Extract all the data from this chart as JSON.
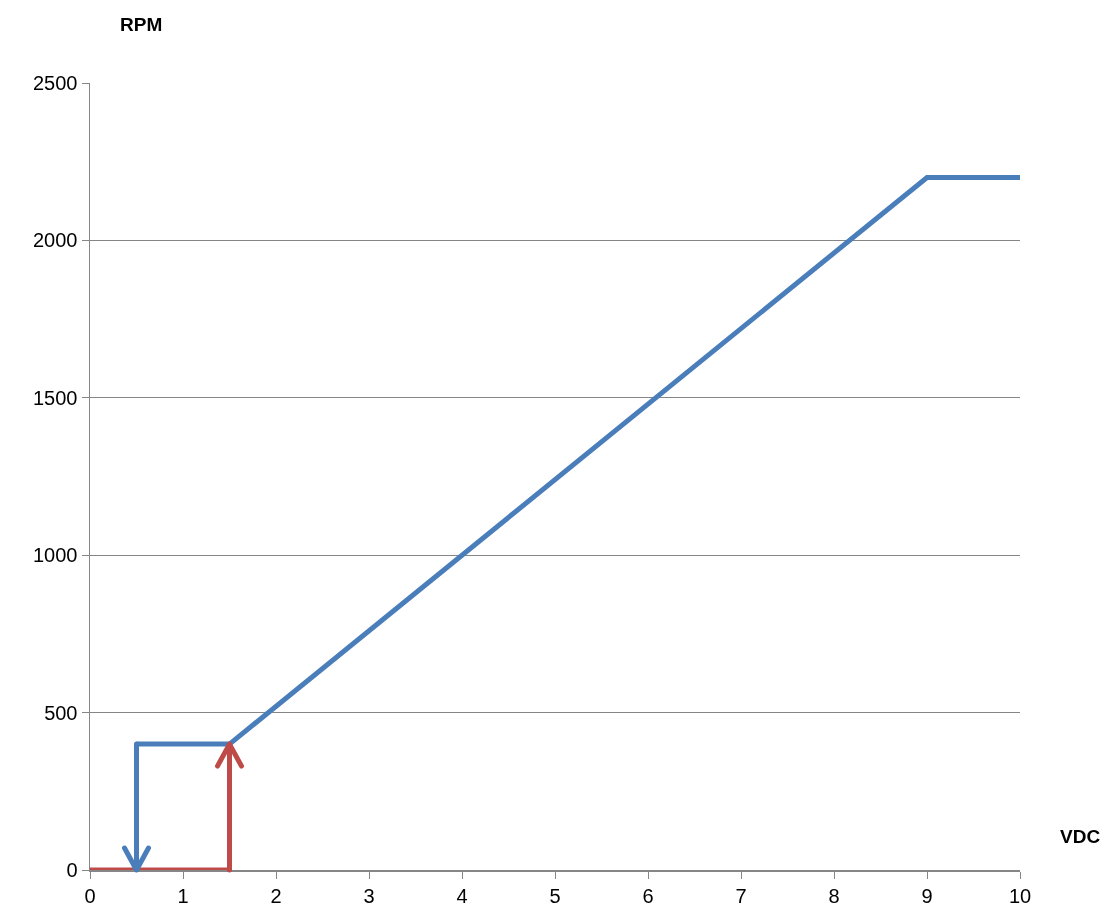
{
  "chart_data": {
    "type": "line",
    "xlabel": "VDC",
    "ylabel": "RPM",
    "series": [
      {
        "color": "#4a7ebb",
        "x": [
          10,
          9,
          1.5,
          0.5,
          0.5
        ],
        "values": [
          2200,
          2200,
          400,
          400,
          0
        ]
      },
      {
        "color": "#be4b48",
        "x": [
          0,
          1.5,
          1.5
        ],
        "values": [
          0,
          0,
          400
        ]
      }
    ],
    "xlim": [
      0,
      10
    ],
    "xticks": [
      0,
      1,
      2,
      3,
      4,
      5,
      6,
      7,
      8,
      9,
      10
    ],
    "ylim": [
      0,
      2500
    ],
    "yticks": [
      0,
      500,
      1000,
      1500,
      2000,
      2500
    ],
    "grid": "y",
    "line_style": "solid",
    "marker": "none"
  }
}
